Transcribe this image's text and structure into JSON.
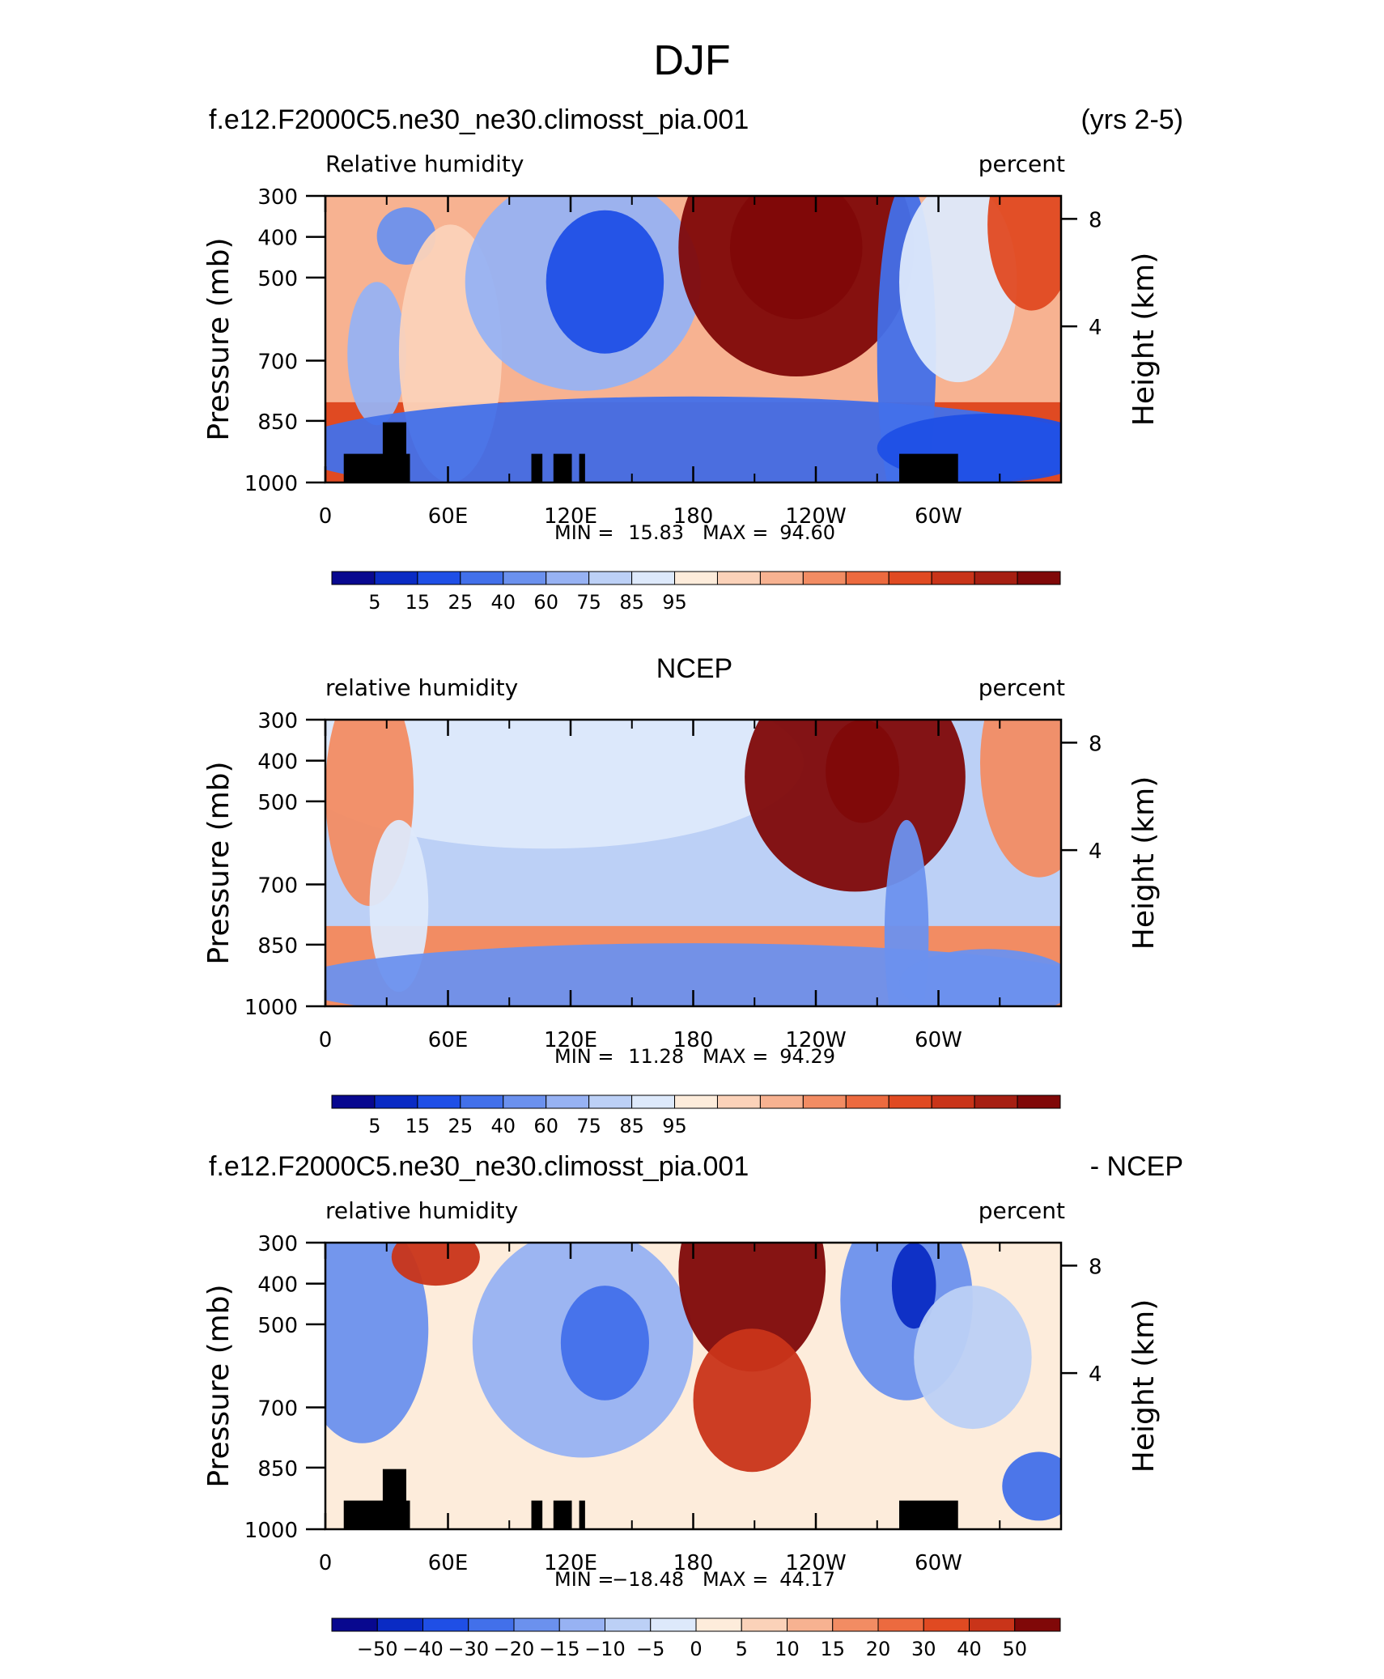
{
  "figure": {
    "title": "DJF"
  },
  "chart_data": [
    {
      "type": "heatmap",
      "left_title": "f.e12.F2000C5.ne30_ne30.climosst_pia.001",
      "right_title": "(yrs 2-5)",
      "variable_label": "Relative humidity",
      "units_label": "percent",
      "ylabel": "Pressure (mb)",
      "y2label": "Height (km)",
      "yticks": [
        "300",
        "400",
        "500",
        "700",
        "850",
        "1000"
      ],
      "y2ticks": [
        "8",
        "4"
      ],
      "xticks": [
        "0",
        "60E",
        "120E",
        "180",
        "120W",
        "60W"
      ],
      "stats": {
        "min_label": "MIN =",
        "min": "15.83",
        "max_label": "MAX =",
        "max": "94.60"
      },
      "colorbar": {
        "labels": [
          "5",
          "15",
          "25",
          "40",
          "60",
          "75",
          "85",
          "95"
        ],
        "colors": [
          "#08088f",
          "#0a2bc4",
          "#1f4fe6",
          "#4270ea",
          "#6b91ee",
          "#97b2f3",
          "#bcd0f6",
          "#dde9fb",
          "#fdecdb",
          "#fbd2b9",
          "#f7b291",
          "#f28c63",
          "#ec6a3f",
          "#e04a22",
          "#c93419",
          "#a61f12",
          "#800808"
        ]
      },
      "land_mask": true
    },
    {
      "type": "heatmap",
      "left_title": "",
      "center_title": "NCEP",
      "variable_label": "relative humidity",
      "units_label": "percent",
      "ylabel": "Pressure (mb)",
      "y2label": "Height (km)",
      "yticks": [
        "300",
        "400",
        "500",
        "700",
        "850",
        "1000"
      ],
      "y2ticks": [
        "8",
        "4"
      ],
      "xticks": [
        "0",
        "60E",
        "120E",
        "180",
        "120W",
        "60W"
      ],
      "stats": {
        "min_label": "MIN =",
        "min": "11.28",
        "max_label": "MAX =",
        "max": "94.29"
      },
      "colorbar": {
        "labels": [
          "5",
          "15",
          "25",
          "40",
          "60",
          "75",
          "85",
          "95"
        ],
        "colors": [
          "#08088f",
          "#0a2bc4",
          "#1f4fe6",
          "#4270ea",
          "#6b91ee",
          "#97b2f3",
          "#bcd0f6",
          "#dde9fb",
          "#fdecdb",
          "#fbd2b9",
          "#f7b291",
          "#f28c63",
          "#ec6a3f",
          "#e04a22",
          "#c93419",
          "#a61f12",
          "#800808"
        ]
      },
      "land_mask": false
    },
    {
      "type": "heatmap",
      "left_title": "f.e12.F2000C5.ne30_ne30.climosst_pia.001",
      "right_title": "- NCEP",
      "variable_label": "relative humidity",
      "units_label": "percent",
      "ylabel": "Pressure (mb)",
      "y2label": "Height (km)",
      "yticks": [
        "300",
        "400",
        "500",
        "700",
        "850",
        "1000"
      ],
      "y2ticks": [
        "8",
        "4"
      ],
      "xticks": [
        "0",
        "60E",
        "120E",
        "180",
        "120W",
        "60W"
      ],
      "stats": {
        "min_label": "MIN =",
        "min": "−18.48",
        "max_label": "MAX =",
        "max": "44.17"
      },
      "colorbar": {
        "labels": [
          "−50",
          "−40",
          "−30",
          "−20",
          "−15",
          "−10",
          "−5",
          "0",
          "5",
          "10",
          "15",
          "20",
          "30",
          "40",
          "50"
        ],
        "colors": [
          "#08088f",
          "#0a2bc4",
          "#1f4fe6",
          "#4270ea",
          "#6b91ee",
          "#97b2f3",
          "#bcd0f6",
          "#dde9fb",
          "#fdecdb",
          "#fbd2b9",
          "#f7b291",
          "#f28c63",
          "#ec6a3f",
          "#e04a22",
          "#c93419",
          "#800808"
        ]
      },
      "land_mask": true
    }
  ]
}
